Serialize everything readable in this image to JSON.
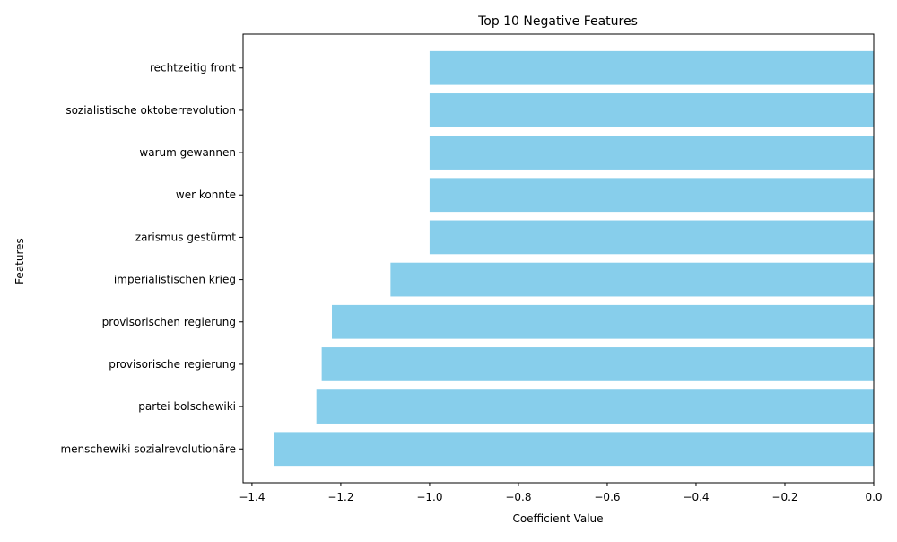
{
  "chart_data": {
    "type": "bar",
    "orientation": "horizontal",
    "title": "Top 10 Negative Features",
    "xlabel": "Coefficient Value",
    "ylabel": "Features",
    "xlim": [
      -1.42,
      0.0
    ],
    "xticks": [
      -1.4,
      -1.2,
      -1.0,
      -0.8,
      -0.6,
      -0.4,
      -0.2,
      0.0
    ],
    "xtick_labels": [
      "−1.4",
      "−1.2",
      "−1.0",
      "−0.8",
      "−0.6",
      "−0.4",
      "−0.2",
      "0.0"
    ],
    "bar_color": "#87ceeb",
    "grid": false,
    "categories": [
      "menschewiki sozialrevolutionäre",
      "partei bolschewiki",
      "provisorische regierung",
      "provisorischen regierung",
      "imperialistischen krieg",
      "zarismus gestürmt",
      "wer konnte",
      "warum gewannen",
      "sozialistische oktoberrevolution",
      "rechtzeitig front"
    ],
    "values": [
      -1.35,
      -1.255,
      -1.243,
      -1.22,
      -1.088,
      -1.0,
      -1.0,
      -1.0,
      -1.0,
      -1.0
    ]
  }
}
